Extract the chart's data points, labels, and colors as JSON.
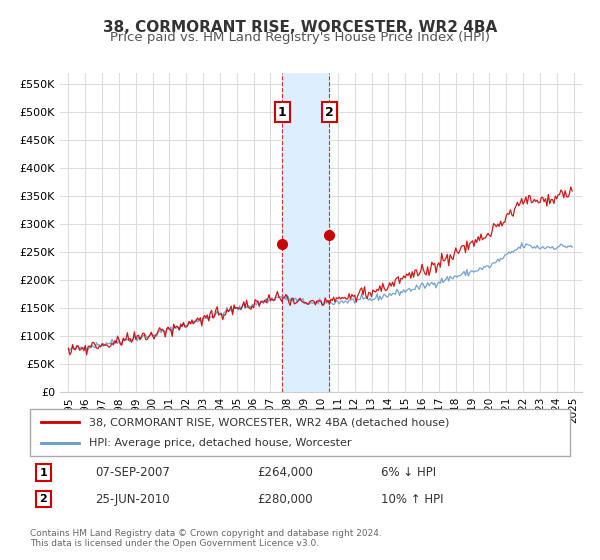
{
  "title": "38, CORMORANT RISE, WORCESTER, WR2 4BA",
  "subtitle": "Price paid vs. HM Land Registry's House Price Index (HPI)",
  "xlabel": "",
  "ylabel": "",
  "ylim": [
    0,
    570000
  ],
  "xlim": [
    1994.5,
    2025.5
  ],
  "yticks": [
    0,
    50000,
    100000,
    150000,
    200000,
    250000,
    300000,
    350000,
    400000,
    450000,
    500000,
    550000
  ],
  "ytick_labels": [
    "£0",
    "£50K",
    "£100K",
    "£150K",
    "£200K",
    "£250K",
    "£300K",
    "£350K",
    "£400K",
    "£450K",
    "£500K",
    "£550K"
  ],
  "xticks": [
    1995,
    1996,
    1997,
    1998,
    1999,
    2000,
    2001,
    2002,
    2003,
    2004,
    2005,
    2006,
    2007,
    2008,
    2009,
    2010,
    2011,
    2012,
    2013,
    2014,
    2015,
    2016,
    2017,
    2018,
    2019,
    2020,
    2021,
    2022,
    2023,
    2024,
    2025
  ],
  "sale1_x": 2007.69,
  "sale1_y": 264000,
  "sale1_label": "1",
  "sale1_date": "07-SEP-2007",
  "sale1_price": "£264,000",
  "sale1_hpi": "6% ↓ HPI",
  "sale2_x": 2010.48,
  "sale2_y": 280000,
  "sale2_label": "2",
  "sale2_date": "25-JUN-2010",
  "sale2_price": "£280,000",
  "sale2_hpi": "10% ↑ HPI",
  "legend_line1": "38, CORMORANT RISE, WORCESTER, WR2 4BA (detached house)",
  "legend_line2": "HPI: Average price, detached house, Worcester",
  "footer1": "Contains HM Land Registry data © Crown copyright and database right 2024.",
  "footer2": "This data is licensed under the Open Government Licence v3.0.",
  "sale_color": "#cc0000",
  "hpi_color": "#6699cc",
  "bg_color": "#ffffff",
  "grid_color": "#dddddd",
  "shade_color": "#ddeeff",
  "title_fontsize": 11,
  "subtitle_fontsize": 9.5
}
